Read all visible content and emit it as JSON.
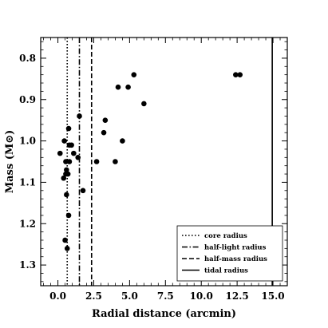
{
  "chart_data": {
    "type": "scatter",
    "title": "",
    "xlabel": "Radial distance (arcmin)",
    "ylabel": "Mass (M⊙)",
    "xlim": [
      -1.2,
      16.0
    ],
    "ylim": [
      1.35,
      0.75
    ],
    "y_inverted": true,
    "x_ticks": [
      0.0,
      2.5,
      5.0,
      7.5,
      10.0,
      12.5,
      15.0
    ],
    "x_tick_labels": [
      "0.0",
      "2.5",
      "5.0",
      "7.5",
      "10.0",
      "12.5",
      "15.0"
    ],
    "y_ticks": [
      0.8,
      0.9,
      1.0,
      1.1,
      1.2,
      1.3
    ],
    "y_tick_labels": [
      "0.8",
      "0.9",
      "1.0",
      "1.1",
      "1.2",
      "1.3"
    ],
    "grid": false,
    "legend_position": "bottom-right",
    "marker_color": "#000000",
    "points": [
      {
        "x": 0.15,
        "y": 1.03
      },
      {
        "x": 0.4,
        "y": 1.09
      },
      {
        "x": 0.45,
        "y": 1.0
      },
      {
        "x": 0.5,
        "y": 1.24
      },
      {
        "x": 0.55,
        "y": 1.05
      },
      {
        "x": 0.55,
        "y": 1.08
      },
      {
        "x": 0.6,
        "y": 1.07
      },
      {
        "x": 0.6,
        "y": 1.13
      },
      {
        "x": 0.65,
        "y": 1.26
      },
      {
        "x": 0.7,
        "y": 1.08
      },
      {
        "x": 0.75,
        "y": 0.97
      },
      {
        "x": 0.75,
        "y": 1.18
      },
      {
        "x": 0.8,
        "y": 1.05
      },
      {
        "x": 0.8,
        "y": 1.01
      },
      {
        "x": 0.95,
        "y": 1.01
      },
      {
        "x": 1.1,
        "y": 1.03
      },
      {
        "x": 1.4,
        "y": 1.04
      },
      {
        "x": 1.5,
        "y": 0.94
      },
      {
        "x": 1.75,
        "y": 1.12
      },
      {
        "x": 2.7,
        "y": 1.05
      },
      {
        "x": 3.2,
        "y": 0.98
      },
      {
        "x": 3.3,
        "y": 0.95
      },
      {
        "x": 4.0,
        "y": 1.05
      },
      {
        "x": 4.2,
        "y": 0.87
      },
      {
        "x": 4.5,
        "y": 1.0
      },
      {
        "x": 4.9,
        "y": 0.87
      },
      {
        "x": 5.3,
        "y": 0.84
      },
      {
        "x": 6.0,
        "y": 0.91
      },
      {
        "x": 12.4,
        "y": 0.84
      },
      {
        "x": 12.7,
        "y": 0.84
      }
    ],
    "reference_lines": [
      {
        "name": "core radius",
        "x": 0.65,
        "style": "dotted"
      },
      {
        "name": "half-light radius",
        "x": 1.5,
        "style": "dashdot"
      },
      {
        "name": "half-mass radius",
        "x": 2.35,
        "style": "dashed"
      },
      {
        "name": "tidal radius",
        "x": 14.95,
        "style": "solid"
      }
    ]
  }
}
